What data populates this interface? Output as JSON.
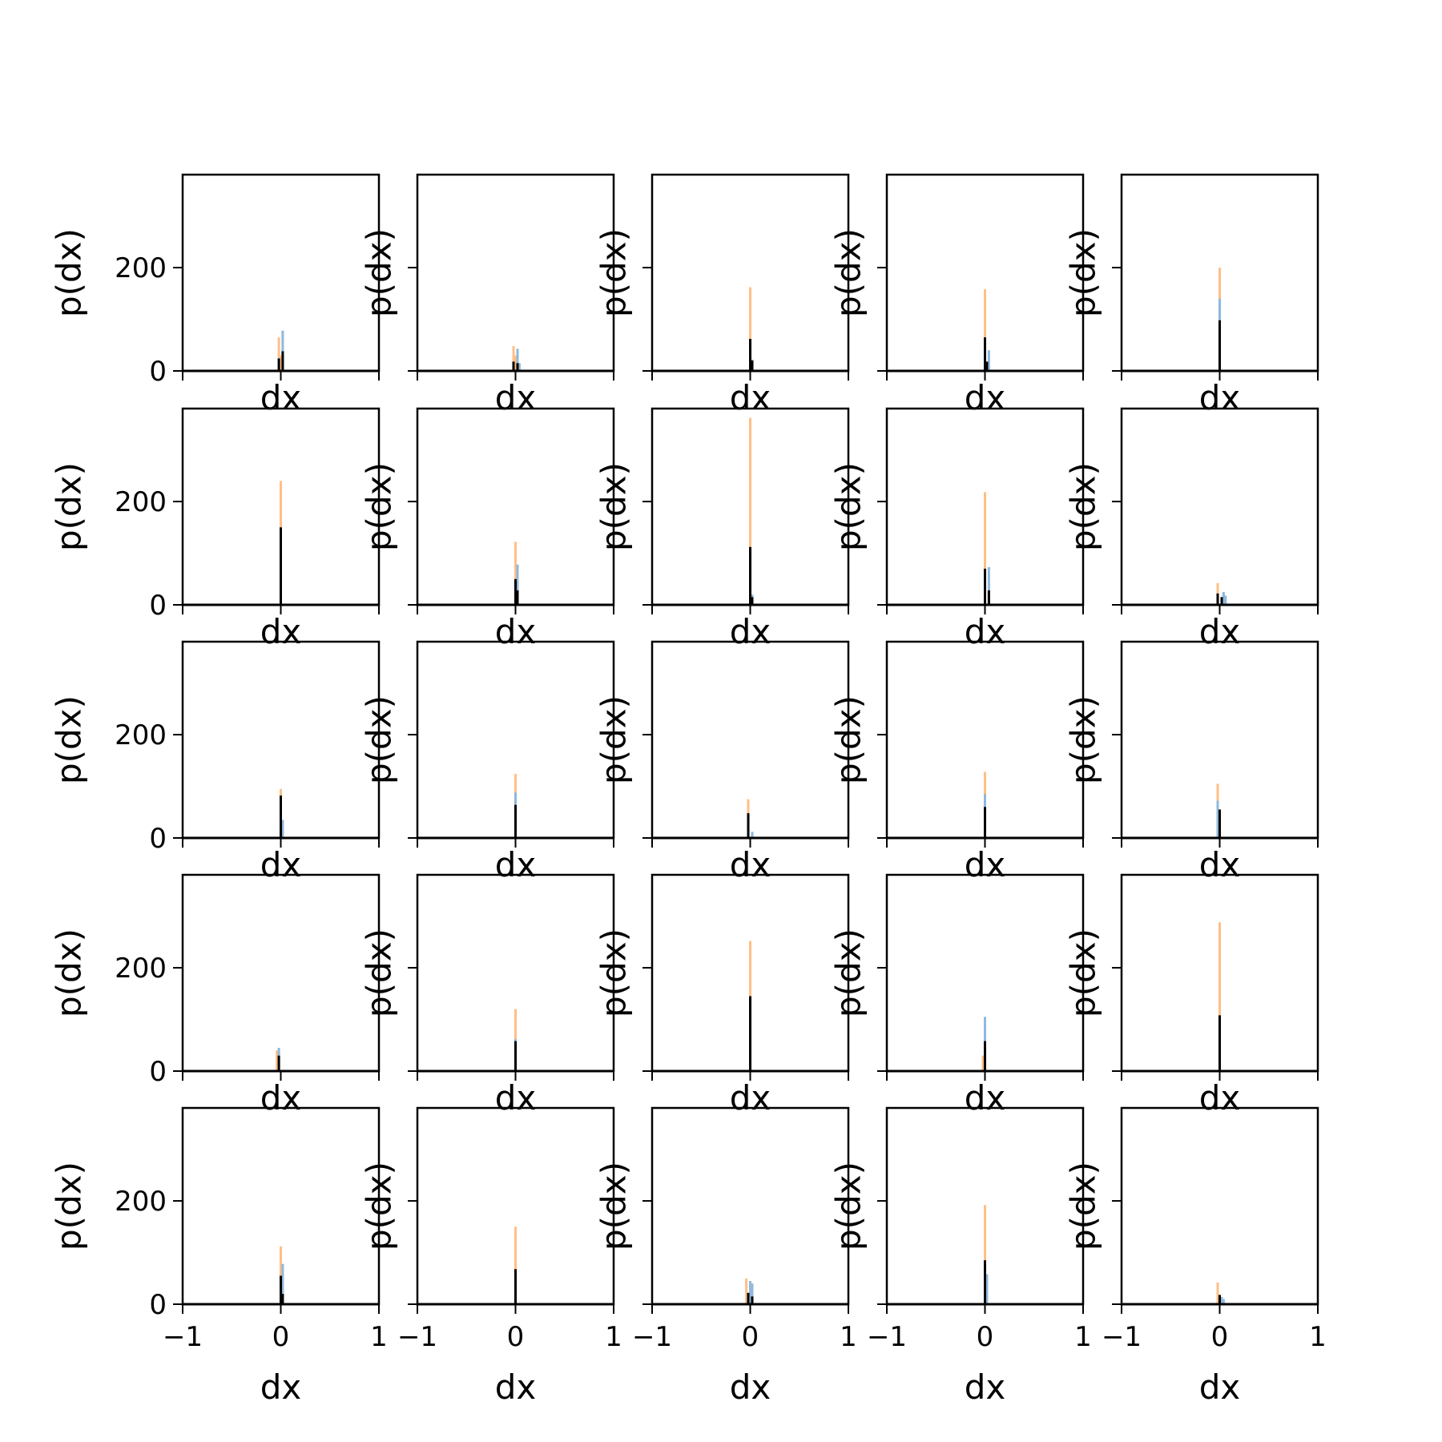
{
  "figure": {
    "rows": 5,
    "cols": 5,
    "xlabel": "dx",
    "ylabel": "p(dx)"
  },
  "colors": {
    "series_a": "#8fb8dc",
    "series_b": "#ffbf86",
    "series_c": "#000000",
    "axes": "#000000",
    "background": "#ffffff"
  },
  "chart_data": {
    "type": "bar",
    "xlim": [
      -1,
      1
    ],
    "ylim": [
      0,
      380
    ],
    "xticks": [
      -1,
      0,
      1
    ],
    "xtick_labels": [
      "−1",
      "0",
      "1"
    ],
    "yticks": [
      0,
      200
    ],
    "ytick_labels": [
      "0",
      "200"
    ],
    "bin_width": 0.02,
    "panels": [
      {
        "row": 0,
        "col": 0,
        "xlabel": "dx",
        "ylabel": "p(dx)",
        "a": [
          {
            "x": 0.02,
            "y": 78
          },
          {
            "x": -0.02,
            "y": 25
          }
        ],
        "b": [
          {
            "x": -0.02,
            "y": 65
          },
          {
            "x": 0.0,
            "y": 30
          }
        ],
        "c": [
          {
            "x": -0.02,
            "y": 24
          },
          {
            "x": 0.02,
            "y": 38
          }
        ]
      },
      {
        "row": 0,
        "col": 1,
        "xlabel": "dx",
        "ylabel": "p(dx)",
        "a": [
          {
            "x": 0.02,
            "y": 43
          },
          {
            "x": 0.04,
            "y": 15
          }
        ],
        "b": [
          {
            "x": -0.02,
            "y": 48
          },
          {
            "x": 0.0,
            "y": 30
          }
        ],
        "c": [
          {
            "x": -0.02,
            "y": 18
          },
          {
            "x": 0.02,
            "y": 15
          }
        ]
      },
      {
        "row": 0,
        "col": 2,
        "xlabel": "dx",
        "ylabel": "p(dx)",
        "a": [
          {
            "x": 0.02,
            "y": 22
          }
        ],
        "b": [
          {
            "x": 0.0,
            "y": 162
          }
        ],
        "c": [
          {
            "x": 0.0,
            "y": 62
          },
          {
            "x": 0.02,
            "y": 20
          }
        ]
      },
      {
        "row": 0,
        "col": 3,
        "xlabel": "dx",
        "ylabel": "p(dx)",
        "a": [
          {
            "x": 0.04,
            "y": 40
          }
        ],
        "b": [
          {
            "x": 0.0,
            "y": 158
          }
        ],
        "c": [
          {
            "x": 0.0,
            "y": 65
          },
          {
            "x": 0.02,
            "y": 18
          }
        ]
      },
      {
        "row": 0,
        "col": 4,
        "xlabel": "dx",
        "ylabel": "p(dx)",
        "a": [
          {
            "x": 0.0,
            "y": 140
          }
        ],
        "b": [
          {
            "x": 0.0,
            "y": 200
          }
        ],
        "c": [
          {
            "x": 0.0,
            "y": 98
          }
        ]
      },
      {
        "row": 1,
        "col": 0,
        "xlabel": "dx",
        "ylabel": "p(dx)",
        "a": [
          {
            "x": 0.0,
            "y": 150
          }
        ],
        "b": [
          {
            "x": 0.0,
            "y": 240
          }
        ],
        "c": [
          {
            "x": 0.0,
            "y": 150
          }
        ]
      },
      {
        "row": 1,
        "col": 1,
        "xlabel": "dx",
        "ylabel": "p(dx)",
        "a": [
          {
            "x": 0.02,
            "y": 78
          }
        ],
        "b": [
          {
            "x": 0.0,
            "y": 122
          }
        ],
        "c": [
          {
            "x": 0.0,
            "y": 50
          },
          {
            "x": 0.02,
            "y": 28
          }
        ]
      },
      {
        "row": 1,
        "col": 2,
        "xlabel": "dx",
        "ylabel": "p(dx)",
        "a": [
          {
            "x": 0.02,
            "y": 20
          }
        ],
        "b": [
          {
            "x": 0.0,
            "y": 362
          }
        ],
        "c": [
          {
            "x": 0.0,
            "y": 112
          },
          {
            "x": 0.02,
            "y": 15
          }
        ]
      },
      {
        "row": 1,
        "col": 3,
        "xlabel": "dx",
        "ylabel": "p(dx)",
        "a": [
          {
            "x": 0.04,
            "y": 73
          }
        ],
        "b": [
          {
            "x": 0.0,
            "y": 218
          }
        ],
        "c": [
          {
            "x": 0.0,
            "y": 70
          },
          {
            "x": 0.04,
            "y": 28
          }
        ]
      },
      {
        "row": 1,
        "col": 4,
        "xlabel": "dx",
        "ylabel": "p(dx)",
        "a": [
          {
            "x": 0.04,
            "y": 25
          },
          {
            "x": 0.06,
            "y": 18
          }
        ],
        "b": [
          {
            "x": -0.02,
            "y": 42
          }
        ],
        "c": [
          {
            "x": -0.02,
            "y": 22
          },
          {
            "x": 0.02,
            "y": 15
          }
        ]
      },
      {
        "row": 2,
        "col": 0,
        "xlabel": "dx",
        "ylabel": "p(dx)",
        "a": [
          {
            "x": 0.02,
            "y": 35
          }
        ],
        "b": [
          {
            "x": 0.0,
            "y": 95
          }
        ],
        "c": [
          {
            "x": 0.0,
            "y": 82
          }
        ]
      },
      {
        "row": 2,
        "col": 1,
        "xlabel": "dx",
        "ylabel": "p(dx)",
        "a": [
          {
            "x": 0.0,
            "y": 88
          }
        ],
        "b": [
          {
            "x": 0.0,
            "y": 124
          }
        ],
        "c": [
          {
            "x": 0.0,
            "y": 64
          }
        ]
      },
      {
        "row": 2,
        "col": 2,
        "xlabel": "dx",
        "ylabel": "p(dx)",
        "a": [
          {
            "x": 0.02,
            "y": 12
          }
        ],
        "b": [
          {
            "x": -0.02,
            "y": 75
          }
        ],
        "c": [
          {
            "x": -0.02,
            "y": 48
          }
        ]
      },
      {
        "row": 2,
        "col": 3,
        "xlabel": "dx",
        "ylabel": "p(dx)",
        "a": [
          {
            "x": 0.0,
            "y": 85
          }
        ],
        "b": [
          {
            "x": 0.0,
            "y": 128
          }
        ],
        "c": [
          {
            "x": 0.0,
            "y": 60
          }
        ]
      },
      {
        "row": 2,
        "col": 4,
        "xlabel": "dx",
        "ylabel": "p(dx)",
        "a": [
          {
            "x": -0.02,
            "y": 72
          }
        ],
        "b": [
          {
            "x": -0.02,
            "y": 105
          }
        ],
        "c": [
          {
            "x": 0.0,
            "y": 55
          }
        ]
      },
      {
        "row": 3,
        "col": 0,
        "xlabel": "dx",
        "ylabel": "p(dx)",
        "a": [
          {
            "x": -0.02,
            "y": 45
          }
        ],
        "b": [
          {
            "x": -0.04,
            "y": 40
          }
        ],
        "c": [
          {
            "x": -0.02,
            "y": 30
          }
        ]
      },
      {
        "row": 3,
        "col": 1,
        "xlabel": "dx",
        "ylabel": "p(dx)",
        "a": [
          {
            "x": 0.0,
            "y": 62
          }
        ],
        "b": [
          {
            "x": 0.0,
            "y": 120
          }
        ],
        "c": [
          {
            "x": 0.0,
            "y": 58
          }
        ]
      },
      {
        "row": 3,
        "col": 2,
        "xlabel": "dx",
        "ylabel": "p(dx)",
        "a": [
          {
            "x": 0.0,
            "y": 110
          }
        ],
        "b": [
          {
            "x": 0.0,
            "y": 252
          }
        ],
        "c": [
          {
            "x": 0.0,
            "y": 145
          }
        ]
      },
      {
        "row": 3,
        "col": 3,
        "xlabel": "dx",
        "ylabel": "p(dx)",
        "a": [
          {
            "x": 0.0,
            "y": 105
          }
        ],
        "b": [
          {
            "x": -0.02,
            "y": 30
          }
        ],
        "c": [
          {
            "x": 0.0,
            "y": 58
          }
        ]
      },
      {
        "row": 3,
        "col": 4,
        "xlabel": "dx",
        "ylabel": "p(dx)",
        "a": [
          {
            "x": 0.0,
            "y": 90
          }
        ],
        "b": [
          {
            "x": 0.0,
            "y": 288
          }
        ],
        "c": [
          {
            "x": 0.0,
            "y": 108
          }
        ]
      },
      {
        "row": 4,
        "col": 0,
        "xlabel": "dx",
        "ylabel": "p(dx)",
        "a": [
          {
            "x": 0.02,
            "y": 78
          }
        ],
        "b": [
          {
            "x": 0.0,
            "y": 112
          }
        ],
        "c": [
          {
            "x": 0.0,
            "y": 55
          },
          {
            "x": 0.02,
            "y": 20
          }
        ]
      },
      {
        "row": 4,
        "col": 1,
        "xlabel": "dx",
        "ylabel": "p(dx)",
        "a": [
          {
            "x": 0.0,
            "y": 55
          }
        ],
        "b": [
          {
            "x": 0.0,
            "y": 150
          }
        ],
        "c": [
          {
            "x": 0.0,
            "y": 68
          }
        ]
      },
      {
        "row": 4,
        "col": 2,
        "xlabel": "dx",
        "ylabel": "p(dx)",
        "a": [
          {
            "x": 0.0,
            "y": 45
          },
          {
            "x": 0.02,
            "y": 40
          }
        ],
        "b": [
          {
            "x": -0.04,
            "y": 50
          }
        ],
        "c": [
          {
            "x": -0.02,
            "y": 22
          },
          {
            "x": 0.02,
            "y": 15
          }
        ]
      },
      {
        "row": 4,
        "col": 3,
        "xlabel": "dx",
        "ylabel": "p(dx)",
        "a": [
          {
            "x": 0.02,
            "y": 58
          }
        ],
        "b": [
          {
            "x": 0.0,
            "y": 192
          }
        ],
        "c": [
          {
            "x": 0.0,
            "y": 85
          }
        ]
      },
      {
        "row": 4,
        "col": 4,
        "xlabel": "dx",
        "ylabel": "p(dx)",
        "a": [
          {
            "x": 0.02,
            "y": 14
          },
          {
            "x": 0.04,
            "y": 10
          }
        ],
        "b": [
          {
            "x": -0.02,
            "y": 42
          }
        ],
        "c": [
          {
            "x": 0.0,
            "y": 18
          }
        ]
      }
    ]
  }
}
